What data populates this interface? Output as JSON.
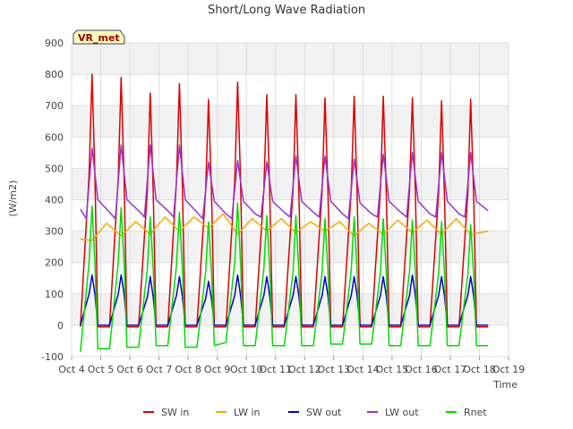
{
  "chart_data": {
    "type": "line",
    "title": "Short/Long Wave Radiation",
    "xlabel": "Time",
    "ylabel": "(W/m2)",
    "annotation": "VR_met",
    "xlim": [
      4,
      19
    ],
    "ylim": [
      -100,
      900
    ],
    "yticks": [
      -100,
      0,
      100,
      200,
      300,
      400,
      500,
      600,
      700,
      800,
      900
    ],
    "xticks": [
      {
        "v": 4,
        "label": "Oct 4"
      },
      {
        "v": 5,
        "label": "Oct 5"
      },
      {
        "v": 6,
        "label": "Oct 6"
      },
      {
        "v": 7,
        "label": "Oct 7"
      },
      {
        "v": 8,
        "label": "Oct 8"
      },
      {
        "v": 9,
        "label": "Oct 9"
      },
      {
        "v": 10,
        "label": "Oct 10"
      },
      {
        "v": 11,
        "label": "Oct 11"
      },
      {
        "v": 12,
        "label": "Oct 12"
      },
      {
        "v": 13,
        "label": "Oct 13"
      },
      {
        "v": 14,
        "label": "Oct 14"
      },
      {
        "v": 15,
        "label": "Oct 15"
      },
      {
        "v": 16,
        "label": "Oct 16"
      },
      {
        "v": 17,
        "label": "Oct 17"
      },
      {
        "v": 18,
        "label": "Oct 18"
      },
      {
        "v": 19,
        "label": "Oct 19"
      }
    ],
    "grid": true,
    "legend": "bottom",
    "series": [
      {
        "name": "SW in",
        "color": "#dd0000",
        "x": [
          4.3,
          4.6,
          4.7,
          4.8,
          4.9,
          5.3,
          5.6,
          5.7,
          5.8,
          5.9,
          6.3,
          6.6,
          6.7,
          6.8,
          6.9,
          7.3,
          7.6,
          7.7,
          7.8,
          7.9,
          8.3,
          8.6,
          8.7,
          8.8,
          8.9,
          9.3,
          9.6,
          9.7,
          9.8,
          9.9,
          10.3,
          10.6,
          10.7,
          10.8,
          10.9,
          11.3,
          11.6,
          11.7,
          11.8,
          11.9,
          12.3,
          12.6,
          12.7,
          12.8,
          12.9,
          13.3,
          13.6,
          13.7,
          13.8,
          13.9,
          14.3,
          14.6,
          14.7,
          14.8,
          14.9,
          15.3,
          15.6,
          15.7,
          15.8,
          15.9,
          16.3,
          16.6,
          16.7,
          16.8,
          16.9,
          17.3,
          17.6,
          17.7,
          17.8,
          17.9,
          18.3
        ],
        "y": [
          -5,
          480,
          800,
          480,
          -5,
          -5,
          470,
          790,
          470,
          -5,
          -5,
          430,
          740,
          430,
          -5,
          -5,
          460,
          770,
          460,
          -5,
          -5,
          430,
          720,
          430,
          -5,
          -5,
          460,
          775,
          460,
          -5,
          -5,
          430,
          735,
          430,
          -5,
          -5,
          430,
          735,
          430,
          -5,
          -5,
          430,
          725,
          430,
          -5,
          -5,
          430,
          730,
          430,
          -5,
          -5,
          430,
          730,
          430,
          -5,
          -5,
          430,
          725,
          430,
          -5,
          -5,
          420,
          715,
          420,
          -5,
          -5,
          420,
          720,
          420,
          -5,
          -5
        ]
      },
      {
        "name": "LW in",
        "color": "#ffa500",
        "x": [
          4.3,
          4.7,
          5.2,
          5.7,
          6.2,
          6.7,
          7.2,
          7.7,
          8.2,
          8.7,
          9.2,
          9.7,
          10.2,
          10.7,
          11.2,
          11.7,
          12.2,
          12.7,
          13.2,
          13.7,
          14.2,
          14.7,
          15.2,
          15.7,
          16.2,
          16.7,
          17.2,
          17.7,
          18.3
        ],
        "y": [
          275,
          270,
          325,
          285,
          330,
          290,
          345,
          300,
          345,
          310,
          355,
          290,
          340,
          300,
          340,
          295,
          330,
          300,
          330,
          285,
          325,
          290,
          335,
          295,
          335,
          290,
          340,
          290,
          300
        ]
      },
      {
        "name": "SW out",
        "color": "#0000cc",
        "x": [
          4.3,
          4.6,
          4.7,
          4.8,
          4.9,
          5.3,
          5.6,
          5.7,
          5.8,
          5.9,
          6.3,
          6.6,
          6.7,
          6.8,
          6.9,
          7.3,
          7.6,
          7.7,
          7.8,
          7.9,
          8.3,
          8.6,
          8.7,
          8.8,
          8.9,
          9.3,
          9.6,
          9.7,
          9.8,
          9.9,
          10.3,
          10.6,
          10.7,
          10.8,
          10.9,
          11.3,
          11.6,
          11.7,
          11.8,
          11.9,
          12.3,
          12.6,
          12.7,
          12.8,
          12.9,
          13.3,
          13.6,
          13.7,
          13.8,
          13.9,
          14.3,
          14.6,
          14.7,
          14.8,
          14.9,
          15.3,
          15.6,
          15.7,
          15.8,
          15.9,
          16.3,
          16.6,
          16.7,
          16.8,
          16.9,
          17.3,
          17.6,
          17.7,
          17.8,
          17.9,
          18.3
        ],
        "y": [
          0,
          100,
          160,
          100,
          0,
          0,
          100,
          160,
          100,
          0,
          0,
          90,
          155,
          90,
          0,
          0,
          95,
          155,
          95,
          0,
          0,
          85,
          140,
          85,
          0,
          0,
          95,
          160,
          95,
          0,
          0,
          95,
          155,
          95,
          0,
          0,
          95,
          155,
          95,
          0,
          0,
          95,
          155,
          95,
          0,
          0,
          95,
          155,
          95,
          0,
          0,
          95,
          155,
          95,
          0,
          0,
          95,
          160,
          95,
          0,
          0,
          95,
          155,
          95,
          0,
          0,
          95,
          155,
          95,
          0,
          0
        ]
      },
      {
        "name": "LW out",
        "color": "#9933cc",
        "x": [
          4.3,
          4.5,
          4.7,
          4.9,
          5.3,
          5.5,
          5.7,
          5.9,
          6.3,
          6.5,
          6.7,
          6.9,
          7.3,
          7.5,
          7.7,
          7.9,
          8.3,
          8.5,
          8.7,
          8.9,
          9.3,
          9.5,
          9.7,
          9.9,
          10.3,
          10.5,
          10.7,
          10.9,
          11.3,
          11.5,
          11.7,
          11.9,
          12.3,
          12.5,
          12.7,
          12.9,
          13.3,
          13.5,
          13.7,
          13.9,
          14.3,
          14.5,
          14.7,
          14.9,
          15.3,
          15.5,
          15.7,
          15.9,
          16.3,
          16.5,
          16.7,
          16.9,
          17.3,
          17.5,
          17.7,
          17.9,
          18.3
        ],
        "y": [
          370,
          340,
          565,
          400,
          360,
          340,
          575,
          400,
          365,
          345,
          575,
          400,
          365,
          345,
          575,
          400,
          360,
          340,
          520,
          395,
          355,
          340,
          525,
          395,
          355,
          345,
          520,
          395,
          360,
          345,
          540,
          395,
          360,
          345,
          540,
          395,
          355,
          340,
          530,
          390,
          355,
          345,
          545,
          395,
          360,
          345,
          550,
          395,
          355,
          345,
          550,
          395,
          355,
          345,
          550,
          395,
          365
        ]
      },
      {
        "name": "Rnet",
        "color": "#00dd00",
        "x": [
          4.3,
          4.6,
          4.7,
          4.8,
          4.9,
          5.3,
          5.6,
          5.7,
          5.8,
          5.9,
          6.3,
          6.6,
          6.7,
          6.8,
          6.9,
          7.3,
          7.6,
          7.7,
          7.8,
          7.9,
          8.3,
          8.6,
          8.7,
          8.8,
          8.9,
          9.3,
          9.6,
          9.7,
          9.8,
          9.9,
          10.3,
          10.6,
          10.7,
          10.8,
          10.9,
          11.3,
          11.6,
          11.7,
          11.8,
          11.9,
          12.3,
          12.6,
          12.7,
          12.8,
          12.9,
          13.3,
          13.6,
          13.7,
          13.8,
          13.9,
          14.3,
          14.6,
          14.7,
          14.8,
          14.9,
          15.3,
          15.6,
          15.7,
          15.8,
          15.9,
          16.3,
          16.6,
          16.7,
          16.8,
          16.9,
          17.3,
          17.6,
          17.7,
          17.8,
          17.9,
          18.3
        ],
        "y": [
          -85,
          200,
          380,
          200,
          -75,
          -75,
          200,
          375,
          200,
          -70,
          -70,
          180,
          345,
          180,
          -65,
          -65,
          190,
          360,
          190,
          -70,
          -70,
          170,
          330,
          170,
          -65,
          -55,
          200,
          390,
          200,
          -65,
          -65,
          180,
          350,
          180,
          -65,
          -65,
          170,
          350,
          170,
          -65,
          -65,
          170,
          340,
          170,
          -60,
          -60,
          175,
          345,
          175,
          -60,
          -60,
          170,
          340,
          170,
          -65,
          -65,
          170,
          335,
          170,
          -65,
          -65,
          165,
          330,
          165,
          -65,
          -65,
          160,
          320,
          160,
          -65,
          -65
        ]
      }
    ]
  }
}
